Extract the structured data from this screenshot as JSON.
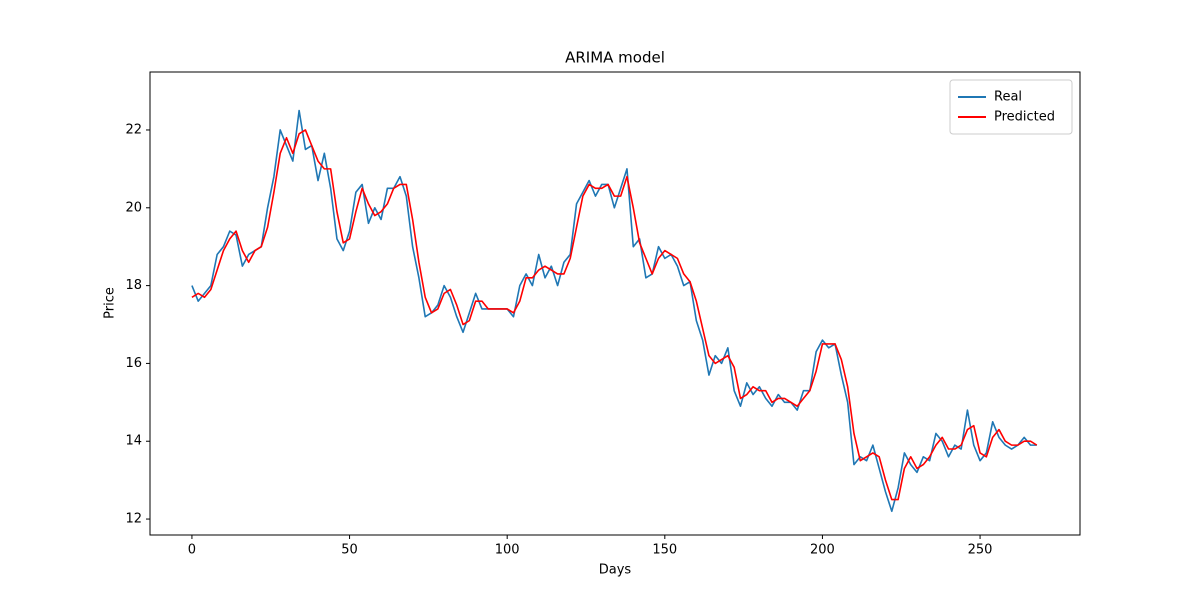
{
  "chart_data": {
    "type": "line",
    "title": "ARIMA model",
    "x_label": "Days",
    "y_label": "Price",
    "x": [
      0,
      2,
      4,
      6,
      8,
      10,
      12,
      14,
      16,
      18,
      20,
      22,
      24,
      26,
      28,
      30,
      32,
      34,
      36,
      38,
      40,
      42,
      44,
      46,
      48,
      50,
      52,
      54,
      56,
      58,
      60,
      62,
      64,
      66,
      68,
      70,
      72,
      74,
      76,
      78,
      80,
      82,
      84,
      86,
      88,
      90,
      92,
      94,
      96,
      98,
      100,
      102,
      104,
      106,
      108,
      110,
      112,
      114,
      116,
      118,
      120,
      122,
      124,
      126,
      128,
      130,
      132,
      134,
      136,
      138,
      140,
      142,
      144,
      146,
      148,
      150,
      152,
      154,
      156,
      158,
      160,
      162,
      164,
      166,
      168,
      170,
      172,
      174,
      176,
      178,
      180,
      182,
      184,
      186,
      188,
      190,
      192,
      194,
      196,
      198,
      200,
      202,
      204,
      206,
      208,
      210,
      212,
      214,
      216,
      218,
      220,
      222,
      224,
      226,
      228,
      230,
      232,
      234,
      236,
      238,
      240,
      242,
      244,
      246,
      248,
      250,
      252,
      254,
      256,
      258,
      260,
      262,
      264,
      266,
      268
    ],
    "series": [
      {
        "name": "Real",
        "color": "#1f77b4",
        "values": [
          18.0,
          17.6,
          17.8,
          18.0,
          18.8,
          19.0,
          19.4,
          19.3,
          18.5,
          18.8,
          18.9,
          19.0,
          20.0,
          20.8,
          22.0,
          21.6,
          21.2,
          22.5,
          21.5,
          21.6,
          20.7,
          21.4,
          20.5,
          19.2,
          18.9,
          19.4,
          20.4,
          20.6,
          19.6,
          20.0,
          19.7,
          20.5,
          20.5,
          20.8,
          20.3,
          19.0,
          18.2,
          17.2,
          17.3,
          17.5,
          18.0,
          17.7,
          17.2,
          16.8,
          17.3,
          17.8,
          17.4,
          17.4,
          17.4,
          17.4,
          17.4,
          17.2,
          18.0,
          18.3,
          18.0,
          18.8,
          18.2,
          18.5,
          18.0,
          18.6,
          18.8,
          20.1,
          20.4,
          20.7,
          20.3,
          20.6,
          20.6,
          20.0,
          20.5,
          21.0,
          19.0,
          19.2,
          18.2,
          18.3,
          19.0,
          18.7,
          18.8,
          18.5,
          18.0,
          18.1,
          17.1,
          16.6,
          15.7,
          16.2,
          16.0,
          16.4,
          15.3,
          14.9,
          15.5,
          15.2,
          15.4,
          15.1,
          14.9,
          15.2,
          15.0,
          15.0,
          14.8,
          15.3,
          15.3,
          16.3,
          16.6,
          16.4,
          16.5,
          15.7,
          15.0,
          13.4,
          13.6,
          13.5,
          13.9,
          13.3,
          12.7,
          12.2,
          12.8,
          13.7,
          13.4,
          13.2,
          13.6,
          13.5,
          14.2,
          14.0,
          13.6,
          13.9,
          13.8,
          14.8,
          13.9,
          13.5,
          13.7,
          14.5,
          14.1,
          13.9,
          13.8,
          13.9,
          14.1,
          13.9,
          13.9
        ]
      },
      {
        "name": "Predicted",
        "color": "#ff0000",
        "values": [
          17.7,
          17.8,
          17.7,
          17.9,
          18.4,
          18.9,
          19.2,
          19.4,
          18.9,
          18.6,
          18.9,
          19.0,
          19.5,
          20.4,
          21.4,
          21.8,
          21.4,
          21.9,
          22.0,
          21.6,
          21.2,
          21.0,
          21.0,
          19.9,
          19.1,
          19.2,
          19.9,
          20.5,
          20.1,
          19.8,
          19.9,
          20.1,
          20.5,
          20.6,
          20.6,
          19.7,
          18.6,
          17.7,
          17.3,
          17.4,
          17.8,
          17.9,
          17.5,
          17.0,
          17.1,
          17.6,
          17.6,
          17.4,
          17.4,
          17.4,
          17.4,
          17.3,
          17.6,
          18.2,
          18.2,
          18.4,
          18.5,
          18.4,
          18.3,
          18.3,
          18.7,
          19.5,
          20.3,
          20.6,
          20.5,
          20.5,
          20.6,
          20.3,
          20.3,
          20.8,
          20.0,
          19.1,
          18.7,
          18.3,
          18.7,
          18.9,
          18.8,
          18.7,
          18.3,
          18.1,
          17.6,
          16.9,
          16.2,
          16.0,
          16.1,
          16.2,
          15.9,
          15.1,
          15.2,
          15.4,
          15.3,
          15.3,
          15.0,
          15.1,
          15.1,
          15.0,
          14.9,
          15.1,
          15.3,
          15.8,
          16.5,
          16.5,
          16.5,
          16.1,
          15.4,
          14.2,
          13.5,
          13.6,
          13.7,
          13.6,
          13.0,
          12.5,
          12.5,
          13.3,
          13.6,
          13.3,
          13.4,
          13.6,
          13.9,
          14.1,
          13.8,
          13.8,
          13.9,
          14.3,
          14.4,
          13.7,
          13.6,
          14.1,
          14.3,
          14.0,
          13.9,
          13.9,
          14.0,
          14.0,
          13.9
        ]
      }
    ],
    "xlim": [
      -13.3,
      281.7
    ],
    "ylim": [
      11.59,
      23.49
    ],
    "xticks": [
      0,
      50,
      100,
      150,
      200,
      250
    ],
    "yticks": [
      12,
      14,
      16,
      18,
      20,
      22
    ],
    "grid": false,
    "legend": "upper right"
  }
}
